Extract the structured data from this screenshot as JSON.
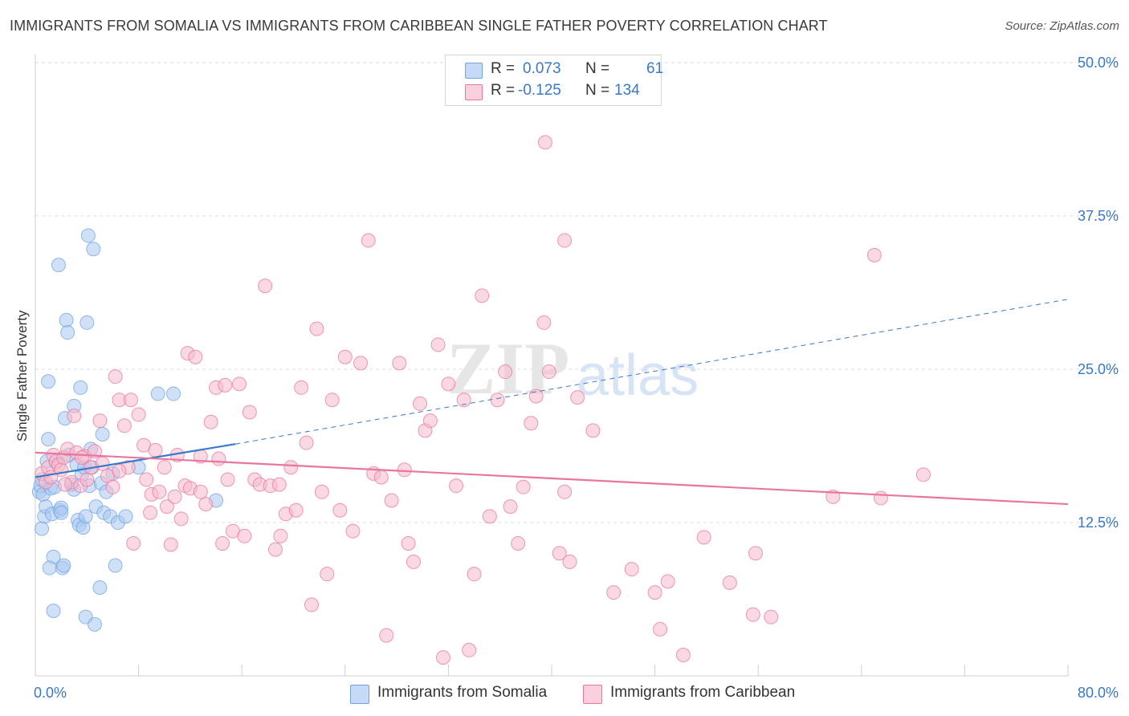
{
  "title": "IMMIGRANTS FROM SOMALIA VS IMMIGRANTS FROM CARIBBEAN SINGLE FATHER POVERTY CORRELATION CHART",
  "source": "Source: ZipAtlas.com",
  "watermark": {
    "zip": "ZIP",
    "atlas": "atlas"
  },
  "legend": {
    "r_label": "R =",
    "n_label": "N =",
    "rows": [
      {
        "r": "0.073",
        "n": "61",
        "color": "#a9c8f0"
      },
      {
        "r": "-0.125",
        "n": "134",
        "color": "#f7b9cc"
      }
    ]
  },
  "chart_data": {
    "type": "scatter",
    "ylabel": "Single Father Poverty",
    "xlim": [
      0,
      80
    ],
    "ylim": [
      0,
      50
    ],
    "x_ticks": [
      "0.0%",
      "80.0%"
    ],
    "y_ticks": [
      "12.5%",
      "25.0%",
      "37.5%",
      "50.0%"
    ],
    "grid": "horizontal dashed",
    "legend_position": "top-center",
    "series": [
      {
        "name": "Immigrants from Somalia",
        "color": "#6fa3e3",
        "fill": "#a9c8f0",
        "trend": {
          "x0": 0,
          "y0": 16.2,
          "x1": 15.5,
          "y1": 18.9,
          "extended_to": [
            80,
            30.7
          ]
        },
        "points": [
          [
            0.3,
            15.0
          ],
          [
            0.4,
            15.5
          ],
          [
            0.5,
            16.0
          ],
          [
            0.6,
            14.8
          ],
          [
            0.7,
            13.0
          ],
          [
            0.5,
            12.0
          ],
          [
            0.8,
            13.8
          ],
          [
            0.9,
            17.5
          ],
          [
            1.0,
            19.3
          ],
          [
            1.0,
            24.0
          ],
          [
            1.2,
            15.3
          ],
          [
            1.3,
            13.2
          ],
          [
            1.5,
            15.4
          ],
          [
            1.6,
            17.4
          ],
          [
            1.4,
            9.7
          ],
          [
            1.1,
            8.8
          ],
          [
            1.8,
            33.5
          ],
          [
            1.9,
            13.5
          ],
          [
            2.0,
            13.7
          ],
          [
            2.1,
            8.8
          ],
          [
            2.2,
            9.0
          ],
          [
            2.3,
            21.0
          ],
          [
            2.4,
            29.0
          ],
          [
            2.5,
            28.0
          ],
          [
            2.6,
            18.0
          ],
          [
            2.8,
            15.6
          ],
          [
            3.0,
            15.2
          ],
          [
            3.0,
            22.0
          ],
          [
            3.2,
            17.2
          ],
          [
            3.3,
            12.7
          ],
          [
            3.4,
            12.3
          ],
          [
            3.5,
            23.5
          ],
          [
            3.6,
            16.4
          ],
          [
            3.7,
            12.1
          ],
          [
            3.8,
            17.0
          ],
          [
            3.9,
            4.8
          ],
          [
            4.0,
            28.8
          ],
          [
            4.1,
            35.9
          ],
          [
            4.2,
            15.5
          ],
          [
            4.3,
            18.5
          ],
          [
            4.4,
            17.0
          ],
          [
            4.5,
            34.8
          ],
          [
            4.6,
            4.2
          ],
          [
            4.7,
            13.8
          ],
          [
            5.0,
            7.2
          ],
          [
            5.1,
            15.7
          ],
          [
            5.2,
            19.7
          ],
          [
            5.3,
            13.3
          ],
          [
            5.5,
            15.0
          ],
          [
            5.8,
            13.0
          ],
          [
            6.0,
            16.5
          ],
          [
            6.2,
            9.0
          ],
          [
            6.4,
            12.5
          ],
          [
            7.0,
            13.0
          ],
          [
            9.5,
            23.0
          ],
          [
            10.7,
            23.0
          ],
          [
            14.0,
            14.3
          ],
          [
            8.0,
            17.0
          ],
          [
            1.4,
            5.3
          ],
          [
            2.0,
            13.3
          ],
          [
            3.9,
            13.0
          ]
        ]
      },
      {
        "name": "Immigrants from Caribbean",
        "color": "#e9769f",
        "fill": "#f7b9cc",
        "trend": {
          "x0": 0,
          "y0": 18.2,
          "x1": 80,
          "y1": 14.0
        },
        "points": [
          [
            0.5,
            16.5
          ],
          [
            0.8,
            15.8
          ],
          [
            1.0,
            17.0
          ],
          [
            1.2,
            16.2
          ],
          [
            1.4,
            18.0
          ],
          [
            1.6,
            17.5
          ],
          [
            1.8,
            17.2
          ],
          [
            2.0,
            16.8
          ],
          [
            2.2,
            17.8
          ],
          [
            2.5,
            18.5
          ],
          [
            2.8,
            15.8
          ],
          [
            3.0,
            21.2
          ],
          [
            3.2,
            18.2
          ],
          [
            3.5,
            15.5
          ],
          [
            3.8,
            17.9
          ],
          [
            4.0,
            16.0
          ],
          [
            4.3,
            17.0
          ],
          [
            4.6,
            18.3
          ],
          [
            5.0,
            20.8
          ],
          [
            5.2,
            17.3
          ],
          [
            5.6,
            16.3
          ],
          [
            6.0,
            15.4
          ],
          [
            6.2,
            24.4
          ],
          [
            6.5,
            22.5
          ],
          [
            6.9,
            20.4
          ],
          [
            7.2,
            17.0
          ],
          [
            7.4,
            22.5
          ],
          [
            7.6,
            10.8
          ],
          [
            8.0,
            21.3
          ],
          [
            8.4,
            18.8
          ],
          [
            8.6,
            16.0
          ],
          [
            8.9,
            13.3
          ],
          [
            9.0,
            14.8
          ],
          [
            9.3,
            18.4
          ],
          [
            9.6,
            15.0
          ],
          [
            10.0,
            17.0
          ],
          [
            10.2,
            13.8
          ],
          [
            10.5,
            10.7
          ],
          [
            10.8,
            14.6
          ],
          [
            11.0,
            18.0
          ],
          [
            11.3,
            12.8
          ],
          [
            11.6,
            15.5
          ],
          [
            11.8,
            26.3
          ],
          [
            12.0,
            15.3
          ],
          [
            12.4,
            26.0
          ],
          [
            12.8,
            15.0
          ],
          [
            13.2,
            14.0
          ],
          [
            13.6,
            20.7
          ],
          [
            14.0,
            23.5
          ],
          [
            14.2,
            17.7
          ],
          [
            14.5,
            10.8
          ],
          [
            14.9,
            16.0
          ],
          [
            15.3,
            11.8
          ],
          [
            15.8,
            23.8
          ],
          [
            16.2,
            11.4
          ],
          [
            16.6,
            21.5
          ],
          [
            17.0,
            16.0
          ],
          [
            17.4,
            15.6
          ],
          [
            17.8,
            31.8
          ],
          [
            18.2,
            15.5
          ],
          [
            18.6,
            10.3
          ],
          [
            19.0,
            11.4
          ],
          [
            19.4,
            13.2
          ],
          [
            19.8,
            17.0
          ],
          [
            20.2,
            13.5
          ],
          [
            20.6,
            23.5
          ],
          [
            21.0,
            19.0
          ],
          [
            21.4,
            5.8
          ],
          [
            21.8,
            28.3
          ],
          [
            22.2,
            15.0
          ],
          [
            22.6,
            8.3
          ],
          [
            23.0,
            22.5
          ],
          [
            23.6,
            13.5
          ],
          [
            24.0,
            26.0
          ],
          [
            24.6,
            11.8
          ],
          [
            25.2,
            25.5
          ],
          [
            25.8,
            35.5
          ],
          [
            26.2,
            16.5
          ],
          [
            26.8,
            16.2
          ],
          [
            27.2,
            3.3
          ],
          [
            27.6,
            14.3
          ],
          [
            28.2,
            25.5
          ],
          [
            28.6,
            16.8
          ],
          [
            28.9,
            10.8
          ],
          [
            29.3,
            9.3
          ],
          [
            29.8,
            22.2
          ],
          [
            30.2,
            20.0
          ],
          [
            30.6,
            20.8
          ],
          [
            31.2,
            27.0
          ],
          [
            32.0,
            23.8
          ],
          [
            31.6,
            1.5
          ],
          [
            32.6,
            15.5
          ],
          [
            33.2,
            22.5
          ],
          [
            33.6,
            2.1
          ],
          [
            34.0,
            8.3
          ],
          [
            34.6,
            31.0
          ],
          [
            35.2,
            13.0
          ],
          [
            35.8,
            22.5
          ],
          [
            36.4,
            24.8
          ],
          [
            36.8,
            13.8
          ],
          [
            37.4,
            10.8
          ],
          [
            37.8,
            15.4
          ],
          [
            38.4,
            20.6
          ],
          [
            38.8,
            22.8
          ],
          [
            39.4,
            28.8
          ],
          [
            39.8,
            24.8
          ],
          [
            40.6,
            10.0
          ],
          [
            41.4,
            9.3
          ],
          [
            39.5,
            43.5
          ],
          [
            41.0,
            35.5
          ],
          [
            42.0,
            22.7
          ],
          [
            41.0,
            15.0
          ],
          [
            43.2,
            20.0
          ],
          [
            44.8,
            6.8
          ],
          [
            46.2,
            8.7
          ],
          [
            48.0,
            6.8
          ],
          [
            48.4,
            3.8
          ],
          [
            49.0,
            7.7
          ],
          [
            50.2,
            1.7
          ],
          [
            51.8,
            11.3
          ],
          [
            53.8,
            7.6
          ],
          [
            55.6,
            5.0
          ],
          [
            55.8,
            10.0
          ],
          [
            57.0,
            4.8
          ],
          [
            61.8,
            14.6
          ],
          [
            65.0,
            34.3
          ],
          [
            65.5,
            14.5
          ],
          [
            68.8,
            16.4
          ],
          [
            2.3,
            15.6
          ],
          [
            3.6,
            17.8
          ],
          [
            6.5,
            16.7
          ],
          [
            12.8,
            17.9
          ],
          [
            14.7,
            23.7
          ],
          [
            18.9,
            15.6
          ]
        ]
      }
    ]
  }
}
